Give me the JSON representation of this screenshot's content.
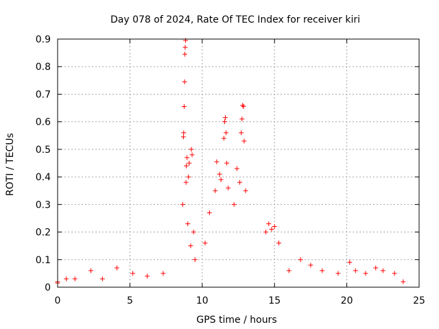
{
  "chart_data": {
    "type": "scatter",
    "title": "Day 078 of 2024, Rate Of TEC Index for receiver kiri",
    "xlabel": "GPS time / hours",
    "ylabel": "ROTI / TECUs",
    "xlim": [
      0,
      25
    ],
    "ylim": [
      0,
      0.9
    ],
    "xticks": [
      "0",
      "5",
      "10",
      "15",
      "20",
      "25"
    ],
    "yticks": [
      "0",
      "0.1",
      "0.2",
      "0.3",
      "0.4",
      "0.5",
      "0.6",
      "0.7",
      "0.8",
      "0.9"
    ],
    "grid": true,
    "marker": "+",
    "color": "#ff0000",
    "series": [
      {
        "x": [
          0.0,
          0.0,
          0.6,
          1.2,
          2.3,
          3.1,
          4.1,
          5.2,
          6.2,
          7.3,
          8.65,
          8.7,
          8.72,
          8.75,
          8.78,
          8.8,
          8.82,
          8.85,
          8.88,
          8.9,
          8.95,
          9.0,
          9.05,
          9.1,
          9.2,
          9.25,
          9.3,
          9.4,
          9.5,
          10.2,
          10.5,
          10.9,
          11.0,
          11.2,
          11.3,
          11.5,
          11.55,
          11.6,
          11.65,
          11.7,
          11.8,
          12.2,
          12.4,
          12.6,
          12.7,
          12.75,
          12.8,
          12.85,
          12.9,
          13.0,
          14.4,
          14.6,
          14.8,
          15.0,
          15.3,
          16.0,
          16.8,
          17.5,
          18.3,
          19.4,
          20.2,
          20.6,
          21.3,
          22.0,
          22.5,
          23.3,
          23.9
        ],
        "y": [
          0.015,
          0.02,
          0.03,
          0.03,
          0.06,
          0.03,
          0.07,
          0.05,
          0.04,
          0.05,
          0.3,
          0.545,
          0.56,
          0.655,
          0.745,
          0.845,
          0.87,
          0.895,
          0.38,
          0.44,
          0.47,
          0.23,
          0.4,
          0.45,
          0.15,
          0.5,
          0.48,
          0.2,
          0.1,
          0.16,
          0.27,
          0.35,
          0.455,
          0.41,
          0.39,
          0.54,
          0.6,
          0.615,
          0.56,
          0.45,
          0.36,
          0.3,
          0.43,
          0.38,
          0.56,
          0.61,
          0.66,
          0.655,
          0.53,
          0.35,
          0.2,
          0.23,
          0.21,
          0.22,
          0.16,
          0.06,
          0.1,
          0.08,
          0.06,
          0.05,
          0.09,
          0.06,
          0.05,
          0.07,
          0.06,
          0.05,
          0.02
        ]
      }
    ]
  }
}
